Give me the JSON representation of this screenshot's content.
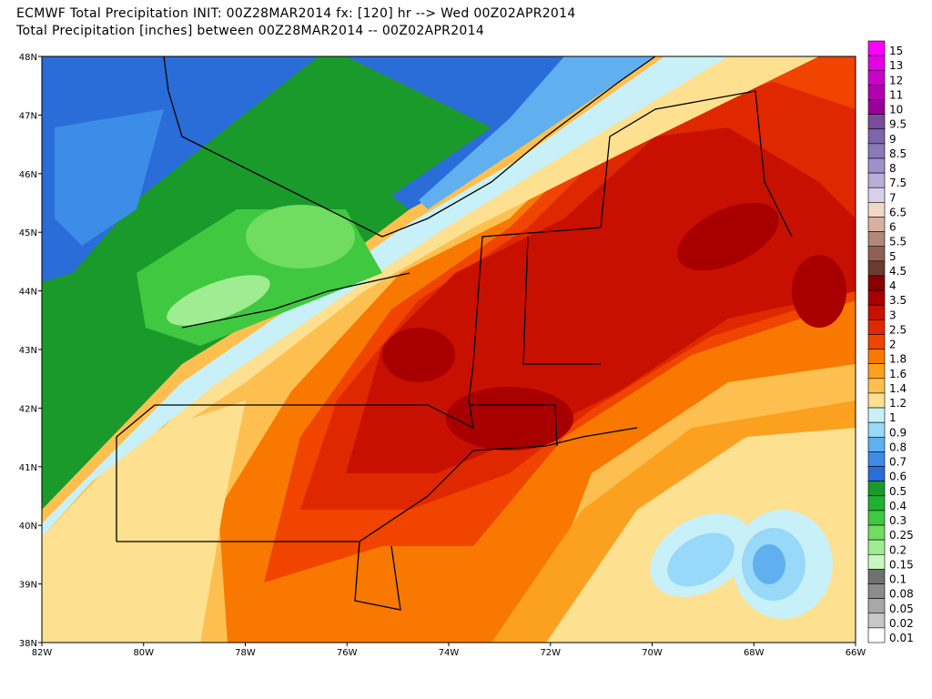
{
  "header": {
    "title": "ECMWF Total Precipitation INIT: 00Z28MAR2014 fx: [120] hr --> Wed 00Z02APR2014",
    "subtitle": "Total Precipitation [inches] between 00Z28MAR2014 -- 00Z02APR2014"
  },
  "map": {
    "lat_labels": [
      "48N",
      "47N",
      "46N",
      "45N",
      "44N",
      "43N",
      "42N",
      "41N",
      "40N",
      "39N",
      "38N"
    ],
    "lon_labels": [
      "82W",
      "80W",
      "78W",
      "76W",
      "74W",
      "72W",
      "70W",
      "68W",
      "66W"
    ]
  },
  "colorbar": [
    {
      "label": "15",
      "color": "#ff00ff"
    },
    {
      "label": "13",
      "color": "#e600e6"
    },
    {
      "label": "12",
      "color": "#cc00cc"
    },
    {
      "label": "11",
      "color": "#b000b0"
    },
    {
      "label": "10",
      "color": "#990099"
    },
    {
      "label": "9.5",
      "color": "#7a4c99"
    },
    {
      "label": "9",
      "color": "#7a66a8"
    },
    {
      "label": "8.5",
      "color": "#8c7ab8"
    },
    {
      "label": "8",
      "color": "#a090c8"
    },
    {
      "label": "7.5",
      "color": "#b8aed8"
    },
    {
      "label": "7",
      "color": "#d8d0ea"
    },
    {
      "label": "6.5",
      "color": "#f0d8c8"
    },
    {
      "label": "6",
      "color": "#d8b0a0"
    },
    {
      "label": "5.5",
      "color": "#b08878"
    },
    {
      "label": "5",
      "color": "#906058"
    },
    {
      "label": "4.5",
      "color": "#6c3c30"
    },
    {
      "label": "4",
      "color": "#8a0000"
    },
    {
      "label": "3.5",
      "color": "#a80000"
    },
    {
      "label": "3",
      "color": "#c81000"
    },
    {
      "label": "2.5",
      "color": "#e02800"
    },
    {
      "label": "2",
      "color": "#f04400"
    },
    {
      "label": "1.8",
      "color": "#f87800"
    },
    {
      "label": "1.6",
      "color": "#fca020"
    },
    {
      "label": "1.4",
      "color": "#fdc050"
    },
    {
      "label": "1.2",
      "color": "#fde090"
    },
    {
      "label": "1",
      "color": "#c8f0f8"
    },
    {
      "label": "0.9",
      "color": "#98d8f8"
    },
    {
      "label": "0.8",
      "color": "#60b0f0"
    },
    {
      "label": "0.7",
      "color": "#3c8ce8"
    },
    {
      "label": "0.6",
      "color": "#2a6cd8"
    },
    {
      "label": "0.5",
      "color": "#1a9a2a"
    },
    {
      "label": "0.4",
      "color": "#20b030"
    },
    {
      "label": "0.3",
      "color": "#40c840"
    },
    {
      "label": "0.25",
      "color": "#70dc60"
    },
    {
      "label": "0.2",
      "color": "#a0ec90"
    },
    {
      "label": "0.15",
      "color": "#c8f8c0"
    },
    {
      "label": "0.1",
      "color": "#707070"
    },
    {
      "label": "0.08",
      "color": "#8c8c8c"
    },
    {
      "label": "0.05",
      "color": "#a8a8a8"
    },
    {
      "label": "0.02",
      "color": "#c8c8c8"
    },
    {
      "label": "0.01",
      "color": "#ffffff"
    }
  ]
}
